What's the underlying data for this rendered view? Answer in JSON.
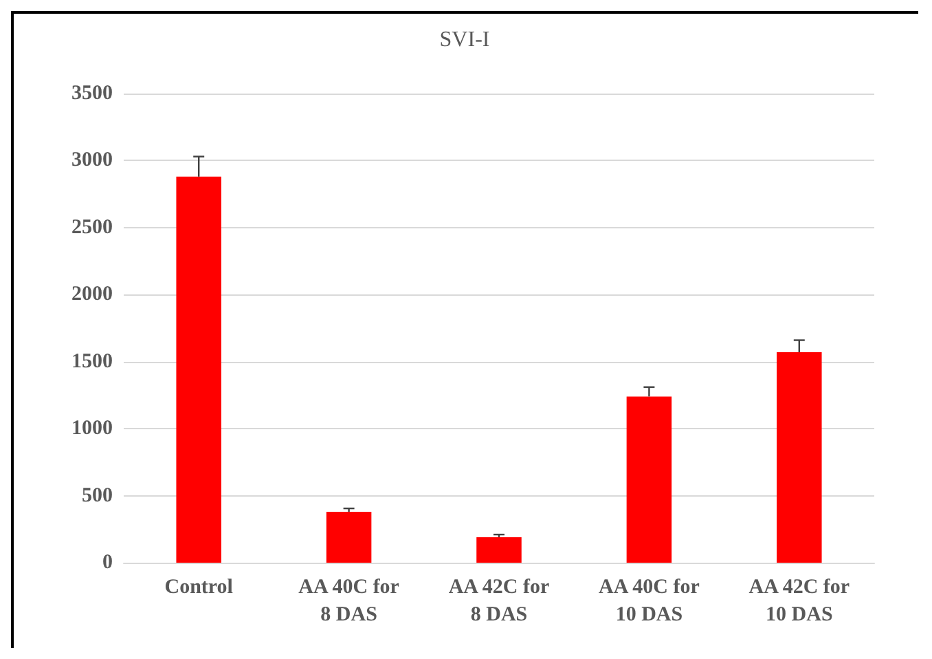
{
  "chart_data": {
    "type": "bar",
    "title": "SVI-I",
    "categories": [
      "Control",
      "AA 40C for\n8 DAS",
      "AA 42C for\n8 DAS",
      "AA 40C for\n10 DAS",
      "AA 42C for\n10 DAS"
    ],
    "values": [
      2880,
      380,
      190,
      1240,
      1570
    ],
    "errors": [
      [
        2880,
        3030
      ],
      [
        380,
        405
      ],
      [
        190,
        210
      ],
      [
        1240,
        1310
      ],
      [
        1570,
        1660
      ]
    ],
    "color": "#ff0000",
    "ylim": [
      0,
      3500
    ],
    "yticks": [
      0,
      500,
      1000,
      1500,
      2000,
      2500,
      3000,
      3500
    ],
    "grid": "y"
  }
}
